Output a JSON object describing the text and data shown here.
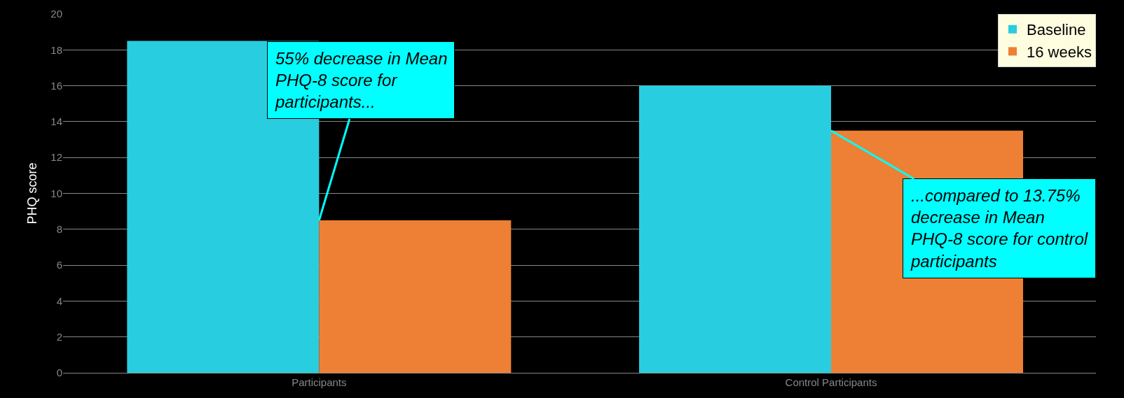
{
  "chart_data": {
    "type": "bar",
    "ylabel": "PHQ score",
    "categories": [
      "Participants",
      "Control Participants"
    ],
    "series": [
      {
        "name": "Baseline",
        "color": "#29cde0",
        "values": [
          18.5,
          16
        ]
      },
      {
        "name": "16 weeks",
        "color": "#ed8034",
        "values": [
          8.5,
          13.5
        ]
      }
    ],
    "ylim": [
      0,
      20
    ],
    "yticks": [
      0,
      2,
      4,
      6,
      8,
      10,
      12,
      14,
      16,
      18,
      20
    ],
    "grid": "y",
    "legend": "top right",
    "annotations": [
      {
        "text": "55% decrease in Mean\nPHQ-8 score for\nparticipants...",
        "x": "Participants",
        "y": 8.5
      },
      {
        "text": "...compared to 13.75%\ndecrease in Mean\nPHQ-8 score for control\nparticipants",
        "x": "Control Participants",
        "y": 13.5
      }
    ]
  }
}
